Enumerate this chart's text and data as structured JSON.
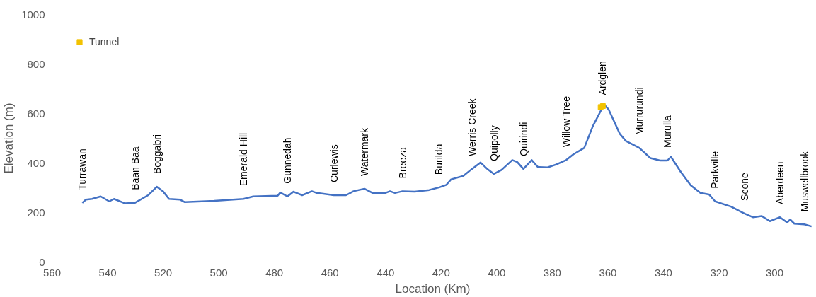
{
  "chart_data": {
    "type": "line",
    "xlabel": "Location (Km)",
    "ylabel": "Elevation (m)",
    "xlim": [
      560,
      286
    ],
    "xticks": [
      560,
      540,
      520,
      500,
      480,
      460,
      440,
      420,
      400,
      380,
      360,
      340,
      320,
      300
    ],
    "ylim": [
      0,
      1000
    ],
    "yticks": [
      0,
      200,
      400,
      600,
      800,
      1000
    ],
    "grid": false,
    "legend": "top left",
    "series": [
      {
        "color": "#4472c4",
        "x": [
          549.1,
          547.8,
          545.6,
          542.5,
          539.4,
          537.7,
          533.7,
          530.2,
          525.4,
          522.3,
          520.1,
          517.9,
          513.9,
          512.2,
          501.6,
          491.1,
          487.6,
          478.8,
          477.9,
          475.3,
          473.1,
          470,
          466.5,
          464.7,
          458.6,
          454.2,
          451.5,
          447.6,
          444.5,
          440.1,
          438.4,
          436.6,
          433.9,
          429.5,
          424.3,
          420.8,
          418.1,
          416.4,
          412,
          408.9,
          405.8,
          403.2,
          401,
          398.3,
          394.4,
          392.6,
          390.4,
          387.4,
          385.2,
          381.7,
          378.6,
          375,
          372.4,
          368.5,
          365.4,
          362,
          361,
          359.7,
          355.7,
          353.5,
          348.7,
          344.7,
          341.2,
          338.6,
          337.3,
          333.7,
          330.2,
          326.7,
          323.6,
          321.4,
          315.7,
          310.9,
          307.8,
          304.7,
          301.7,
          298.1,
          295.5,
          294.4,
          292.9,
          289.3,
          286.7
        ],
        "values": [
          239,
          252,
          255,
          265,
          245,
          255,
          237,
          239,
          270,
          304,
          286,
          255,
          252,
          242,
          247,
          255,
          265,
          268,
          281,
          265,
          284,
          270,
          286,
          279,
          270,
          270,
          286,
          296,
          278,
          279,
          286,
          279,
          286,
          284,
          291,
          301,
          312,
          334,
          348,
          376,
          402,
          374,
          356,
          372,
          412,
          404,
          376,
          412,
          384,
          382,
          394,
          412,
          435,
          461,
          549,
          623,
          632,
          616,
          518,
          489,
          461,
          420,
          410,
          410,
          425,
          363,
          310,
          279,
          273,
          245,
          224,
          196,
          181,
          186,
          165,
          181,
          160,
          172,
          155,
          152,
          144
        ]
      },
      {
        "type": "scatter",
        "name": "Tunnel",
        "color": "#f2c200",
        "marker": "square",
        "x": [
          362.6,
          361.8
        ],
        "values": [
          626,
          630
        ]
      }
    ],
    "annotations": [
      {
        "text": "Turrawan",
        "x": 549.1,
        "y": 239
      },
      {
        "text": "Baan Baa",
        "x": 530.2,
        "y": 239
      },
      {
        "text": "Boggabri",
        "x": 522.3,
        "y": 304
      },
      {
        "text": "Emerald Hill",
        "x": 491.1,
        "y": 255
      },
      {
        "text": "Gunnedah",
        "x": 475.3,
        "y": 265
      },
      {
        "text": "Curlewis",
        "x": 458.6,
        "y": 270
      },
      {
        "text": "Watermark",
        "x": 447.6,
        "y": 296
      },
      {
        "text": "Breeza",
        "x": 433.9,
        "y": 286
      },
      {
        "text": "Burilda",
        "x": 420.8,
        "y": 301
      },
      {
        "text": "Werris Creek",
        "x": 408.9,
        "y": 376
      },
      {
        "text": "Quipolly",
        "x": 401,
        "y": 356
      },
      {
        "text": "Quirindi",
        "x": 390.4,
        "y": 376
      },
      {
        "text": "Willow Tree",
        "x": 375,
        "y": 412
      },
      {
        "text": "Ardglen",
        "x": 362,
        "y": 623
      },
      {
        "text": "Murrurundi",
        "x": 348.7,
        "y": 461
      },
      {
        "text": "Murulla",
        "x": 338.6,
        "y": 410
      },
      {
        "text": "Parkville",
        "x": 321.4,
        "y": 245
      },
      {
        "text": "Scone",
        "x": 310.9,
        "y": 196
      },
      {
        "text": "Aberdeen",
        "x": 298.1,
        "y": 181
      },
      {
        "text": "Muswellbrook",
        "x": 289.3,
        "y": 152
      }
    ]
  }
}
